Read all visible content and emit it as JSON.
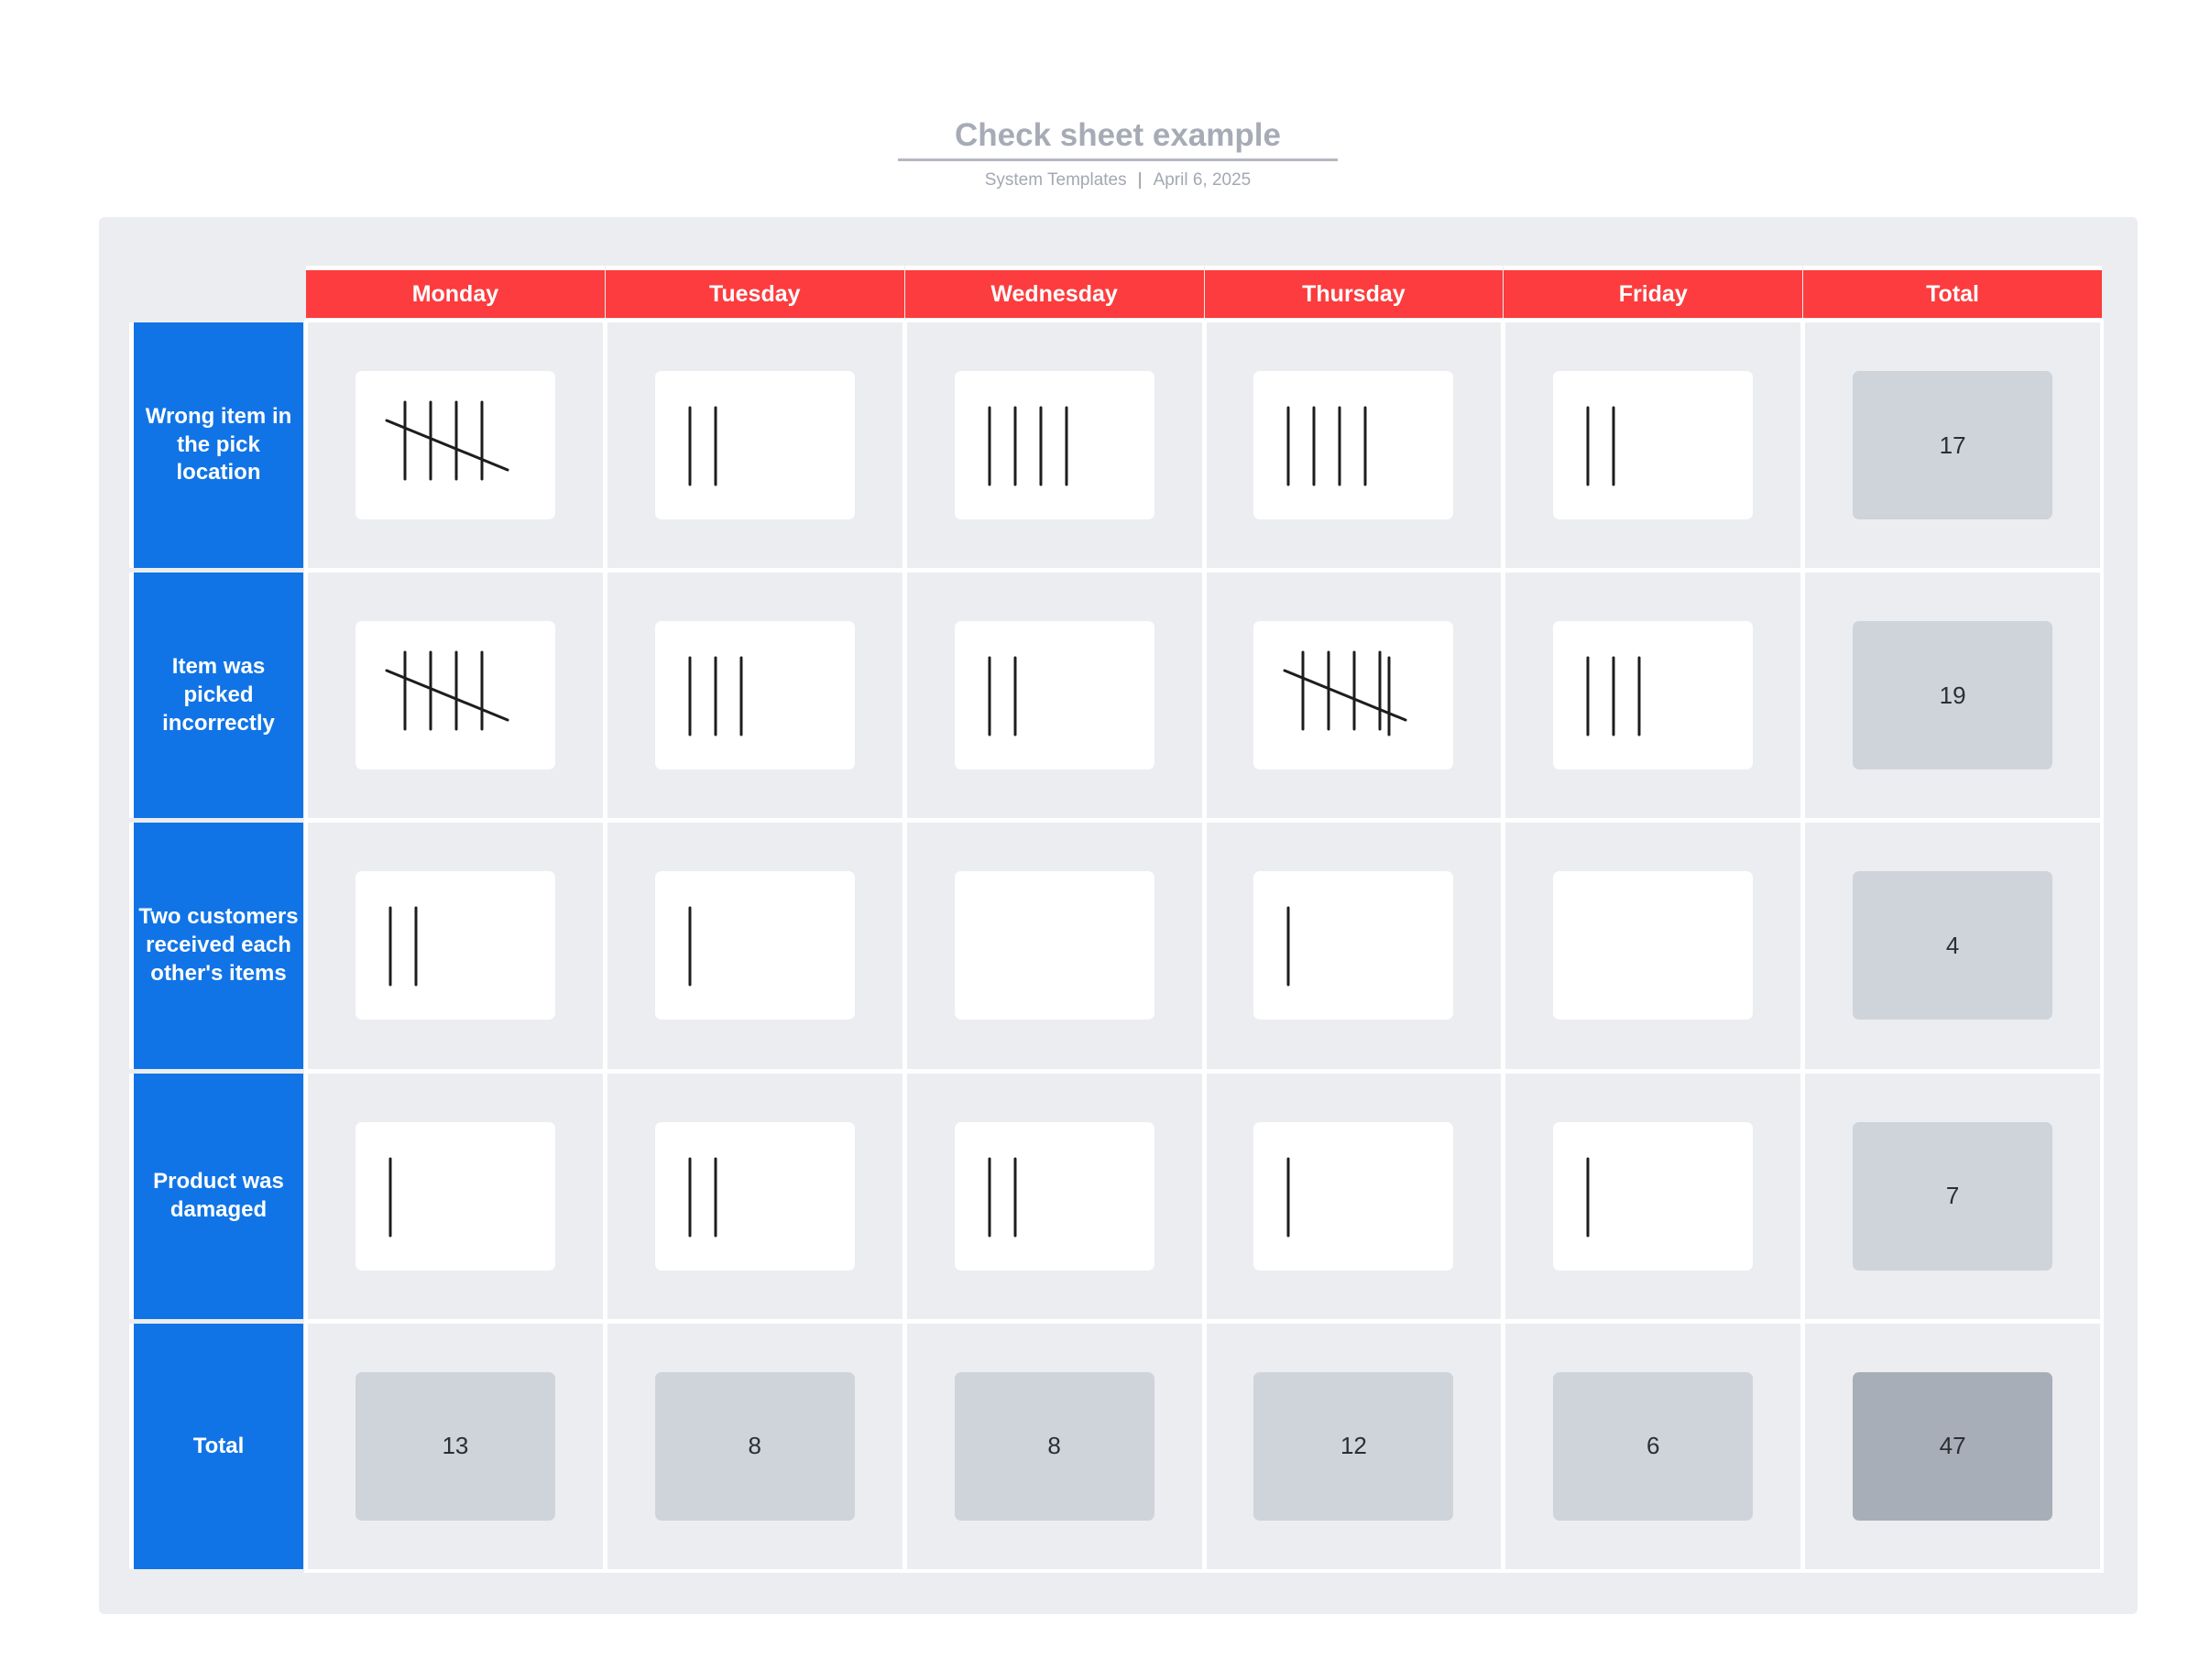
{
  "header": {
    "title": "Check sheet example",
    "author": "System Templates",
    "date": "April 6, 2025"
  },
  "days": [
    "Monday",
    "Tuesday",
    "Wednesday",
    "Thursday",
    "Friday"
  ],
  "total_label": "Total",
  "rows": [
    {
      "label": "Wrong item in the pick location",
      "counts": [
        5,
        2,
        4,
        4,
        2
      ],
      "total": "17"
    },
    {
      "label": "Item was picked incorrectly",
      "counts": [
        5,
        3,
        2,
        6,
        3
      ],
      "total": "19"
    },
    {
      "label": "Two customers received each other's items",
      "counts": [
        2,
        1,
        0,
        1,
        0
      ],
      "total": "4"
    },
    {
      "label": "Product was damaged",
      "counts": [
        1,
        2,
        2,
        1,
        1
      ],
      "total": "7"
    }
  ],
  "column_totals": [
    "13",
    "8",
    "8",
    "12",
    "6"
  ],
  "grand_total": "47",
  "colors": {
    "header_red": "#fc3c3e",
    "row_blue": "#1174e6",
    "total_cell": "#cfd4db",
    "grand_total_cell": "#a8aeb8",
    "board": "#ebedf0"
  }
}
